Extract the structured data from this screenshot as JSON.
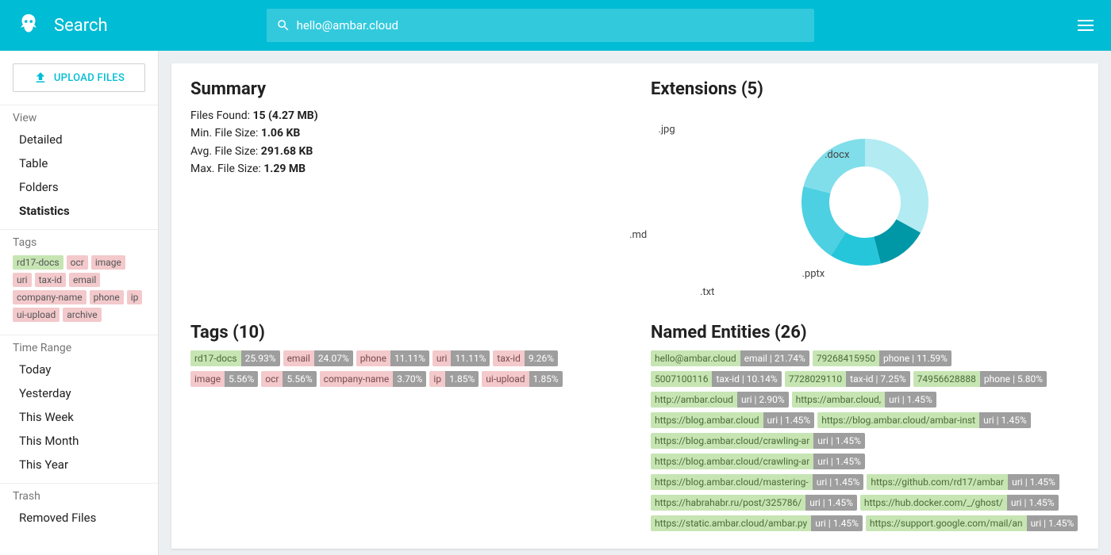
{
  "app": {
    "title": "Search"
  },
  "search": {
    "value": "hello@ambar.cloud"
  },
  "upload": {
    "label": "UPLOAD FILES"
  },
  "sidebar": {
    "view": {
      "title": "View",
      "items": [
        "Detailed",
        "Table",
        "Folders",
        "Statistics"
      ],
      "active": 3
    },
    "tags": {
      "title": "Tags",
      "items": [
        {
          "t": "rd17-docs",
          "c": "green"
        },
        {
          "t": "ocr",
          "c": "pink"
        },
        {
          "t": "image",
          "c": "pink"
        },
        {
          "t": "uri",
          "c": "pink"
        },
        {
          "t": "tax-id",
          "c": "pink"
        },
        {
          "t": "email",
          "c": "pink"
        },
        {
          "t": "company-name",
          "c": "pink"
        },
        {
          "t": "phone",
          "c": "pink"
        },
        {
          "t": "ip",
          "c": "pink"
        },
        {
          "t": "ui-upload",
          "c": "pink"
        },
        {
          "t": "archive",
          "c": "pink"
        }
      ]
    },
    "time": {
      "title": "Time Range",
      "items": [
        "Today",
        "Yesterday",
        "This Week",
        "This Month",
        "This Year"
      ]
    },
    "trash": {
      "title": "Trash",
      "items": [
        "Removed Files"
      ]
    }
  },
  "summary": {
    "title": "Summary",
    "lines": [
      {
        "k": "Files Found:",
        "v": "15 (4.27 MB)"
      },
      {
        "k": "Min. File Size:",
        "v": "1.06 KB"
      },
      {
        "k": "Avg. File Size:",
        "v": "291.68 KB"
      },
      {
        "k": "Max. File Size:",
        "v": "1.29 MB"
      }
    ]
  },
  "extensions": {
    "title": "Extensions (5)",
    "slices": [
      {
        "label": ".docx",
        "value": 33,
        "color": "#b2ebf2"
      },
      {
        "label": ".pptx",
        "value": 13,
        "color": "#0097a7"
      },
      {
        "label": ".txt",
        "value": 13,
        "color": "#26c6da"
      },
      {
        "label": ".md",
        "value": 20,
        "color": "#4dd0e1"
      },
      {
        "label": ".jpg",
        "value": 21,
        "color": "#80deea"
      }
    ],
    "inner_radius": 45,
    "outer_radius": 80,
    "label_radius": 115,
    "background": "#ffffff"
  },
  "tags_panel": {
    "title": "Tags (10)",
    "items": [
      {
        "t": "rd17-docs",
        "v": "25.93%",
        "c": "green"
      },
      {
        "t": "email",
        "v": "24.07%",
        "c": "pink"
      },
      {
        "t": "phone",
        "v": "11.11%",
        "c": "pink"
      },
      {
        "t": "uri",
        "v": "11.11%",
        "c": "pink"
      },
      {
        "t": "tax-id",
        "v": "9.26%",
        "c": "pink"
      },
      {
        "t": "image",
        "v": "5.56%",
        "c": "pink"
      },
      {
        "t": "ocr",
        "v": "5.56%",
        "c": "pink"
      },
      {
        "t": "company-name",
        "v": "3.70%",
        "c": "pink"
      },
      {
        "t": "ip",
        "v": "1.85%",
        "c": "pink"
      },
      {
        "t": "ui-upload",
        "v": "1.85%",
        "c": "pink"
      }
    ]
  },
  "entities": {
    "title": "Named Entities (26)",
    "items": [
      {
        "t": "hello@ambar.cloud",
        "v": "email | 21.74%"
      },
      {
        "t": "79268415950",
        "v": "phone | 11.59%"
      },
      {
        "t": "5007100116",
        "v": "tax-id | 10.14%"
      },
      {
        "t": "7728029110",
        "v": "tax-id | 7.25%"
      },
      {
        "t": "74956628888",
        "v": "phone | 5.80%"
      },
      {
        "t": "http://ambar.cloud",
        "v": "uri | 2.90%"
      },
      {
        "t": "https://ambar.cloud,",
        "v": "uri | 1.45%"
      },
      {
        "t": "https://blog.ambar.cloud",
        "v": "uri | 1.45%"
      },
      {
        "t": "https://blog.ambar.cloud/ambar-inst",
        "v": "uri | 1.45%"
      },
      {
        "t": "https://blog.ambar.cloud/crawling-ar",
        "v": "uri | 1.45%"
      },
      {
        "t": "https://blog.ambar.cloud/crawling-ar",
        "v": "uri | 1.45%"
      },
      {
        "t": "https://blog.ambar.cloud/mastering-",
        "v": "uri | 1.45%"
      },
      {
        "t": "https://github.com/rd17/ambar",
        "v": "uri | 1.45%"
      },
      {
        "t": "https://habrahabr.ru/post/325786/",
        "v": "uri | 1.45%"
      },
      {
        "t": "https://hub.docker.com/_/ghost/",
        "v": "uri | 1.45%"
      },
      {
        "t": "https://static.ambar.cloud/ambar.py",
        "v": "uri | 1.45%"
      },
      {
        "t": "https://support.google.com/mail/an",
        "v": "uri | 1.45%"
      }
    ]
  }
}
